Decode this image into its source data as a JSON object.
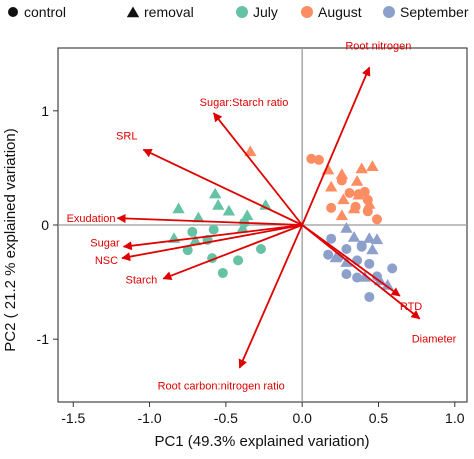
{
  "chart_data": {
    "type": "scatter",
    "title": "",
    "xlabel": "PC1 (49.3% explained variation)",
    "ylabel": "PC2 ( 21.2 % explained variation)",
    "xlim": [
      -1.6,
      1.08
    ],
    "ylim": [
      -1.55,
      1.55
    ],
    "xticks": [
      -1.5,
      -1.0,
      -0.5,
      0,
      0.5,
      1.0
    ],
    "xtick_labels": [
      "-1.5",
      "-1.0",
      "-0.5",
      "0.0",
      "0.5",
      "1.0"
    ],
    "yticks": [
      -1,
      0,
      1
    ],
    "ytick_labels": [
      "-1",
      "0",
      "1"
    ],
    "grid": false,
    "reference_lines": [
      0,
      0
    ],
    "legend": {
      "placement": "top",
      "shape_items": [
        {
          "label": "control",
          "marker": "circle"
        },
        {
          "label": "removal",
          "marker": "triangle"
        }
      ],
      "color_items": [
        {
          "label": "July",
          "color": "#66c2a5"
        },
        {
          "label": "August",
          "color": "#fc8d62"
        },
        {
          "label": "September",
          "color": "#8da0cb"
        }
      ]
    },
    "arrow_color": "#e00000",
    "loadings": [
      {
        "label": "Root nitrogen",
        "x": 0.44,
        "y": 1.38
      },
      {
        "label": "Sugar:Starch ratio",
        "x": -0.58,
        "y": 0.98
      },
      {
        "label": "SRL",
        "x": -1.04,
        "y": 0.66
      },
      {
        "label": "Exudation",
        "x": -1.21,
        "y": 0.06
      },
      {
        "label": "Sugar",
        "x": -1.17,
        "y": -0.19
      },
      {
        "label": "NSC",
        "x": -1.18,
        "y": -0.29
      },
      {
        "label": "Starch",
        "x": -0.91,
        "y": -0.47
      },
      {
        "label": "RTD",
        "x": 0.64,
        "y": -0.62
      },
      {
        "label": "Diameter",
        "x": 0.77,
        "y": -0.82
      },
      {
        "label": "Root carbon:nitrogen ratio",
        "x": -0.41,
        "y": -1.25
      }
    ],
    "series": [
      {
        "month": "July",
        "treatment": "control",
        "marker": "circle",
        "color": "#66c2a5",
        "points": [
          [
            -0.72,
            -0.06
          ],
          [
            -0.75,
            -0.22
          ],
          [
            -0.62,
            -0.13
          ],
          [
            -0.59,
            -0.29
          ],
          [
            -0.52,
            -0.42
          ],
          [
            -0.42,
            -0.31
          ],
          [
            -0.38,
            0.02
          ],
          [
            -0.27,
            -0.21
          ],
          [
            -0.58,
            -0.04
          ]
        ]
      },
      {
        "month": "July",
        "treatment": "removal",
        "marker": "triangle",
        "color": "#66c2a5",
        "points": [
          [
            -0.81,
            0.14
          ],
          [
            -0.84,
            -0.12
          ],
          [
            -0.68,
            0.06
          ],
          [
            -0.57,
            0.27
          ],
          [
            -0.55,
            0.17
          ],
          [
            -0.48,
            0.12
          ],
          [
            -0.39,
            -0.03
          ],
          [
            -0.24,
            0.17
          ],
          [
            -0.36,
            0.08
          ],
          [
            -0.7,
            -0.14
          ]
        ]
      },
      {
        "month": "August",
        "treatment": "control",
        "marker": "circle",
        "color": "#fc8d62",
        "points": [
          [
            0.06,
            0.58
          ],
          [
            0.11,
            0.57
          ],
          [
            0.26,
            0.39
          ],
          [
            0.31,
            0.28
          ],
          [
            0.37,
            0.27
          ],
          [
            0.41,
            0.29
          ],
          [
            0.35,
            0.16
          ],
          [
            0.43,
            0.12
          ],
          [
            0.49,
            0.05
          ],
          [
            0.19,
            0.15
          ],
          [
            0.43,
            0.22
          ]
        ]
      },
      {
        "month": "August",
        "treatment": "removal",
        "marker": "triangle",
        "color": "#fc8d62",
        "points": [
          [
            -0.34,
            0.64
          ],
          [
            0.17,
            0.48
          ],
          [
            0.26,
            0.44
          ],
          [
            0.39,
            0.49
          ],
          [
            0.46,
            0.51
          ],
          [
            0.19,
            0.33
          ],
          [
            0.27,
            0.22
          ],
          [
            0.36,
            0.38
          ],
          [
            0.26,
            0.08
          ],
          [
            0.37,
            0.26
          ],
          [
            0.44,
            0.18
          ],
          [
            0.34,
            0.14
          ]
        ]
      },
      {
        "month": "September",
        "treatment": "control",
        "marker": "circle",
        "color": "#8da0cb",
        "points": [
          [
            0.19,
            -0.12
          ],
          [
            0.24,
            -0.28
          ],
          [
            0.29,
            -0.21
          ],
          [
            0.36,
            -0.31
          ],
          [
            0.39,
            -0.18
          ],
          [
            0.44,
            -0.34
          ],
          [
            0.49,
            -0.45
          ],
          [
            0.59,
            -0.38
          ],
          [
            0.36,
            -0.46
          ],
          [
            0.29,
            -0.43
          ],
          [
            0.44,
            -0.63
          ],
          [
            0.39,
            -0.19
          ],
          [
            0.17,
            -0.26
          ]
        ]
      },
      {
        "month": "September",
        "treatment": "removal",
        "marker": "triangle",
        "color": "#8da0cb",
        "points": [
          [
            0.29,
            -0.03
          ],
          [
            0.34,
            -0.11
          ],
          [
            0.44,
            -0.12
          ],
          [
            0.29,
            -0.33
          ],
          [
            0.41,
            -0.46
          ],
          [
            0.51,
            -0.49
          ],
          [
            0.22,
            -0.29
          ],
          [
            0.49,
            -0.13
          ],
          [
            0.46,
            -0.22
          ],
          [
            0.56,
            -0.53
          ]
        ]
      }
    ]
  }
}
